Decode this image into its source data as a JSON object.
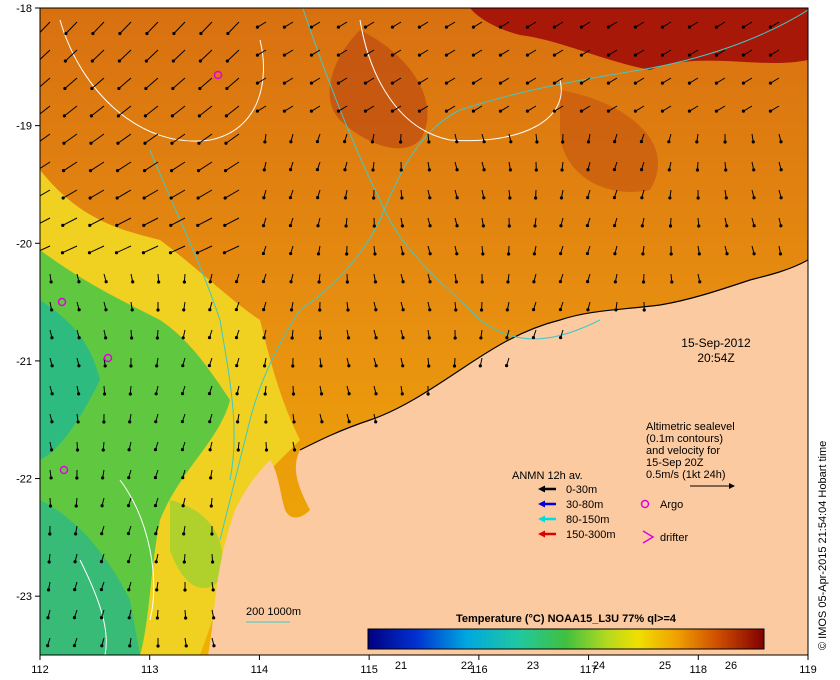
{
  "map": {
    "lon_ticks": [
      "112",
      "113",
      "114",
      "115",
      "116",
      "117",
      "118",
      "119"
    ],
    "lat_ticks": [
      "-18",
      "-19",
      "-20",
      "-21",
      "-22",
      "-23"
    ],
    "lon_range": [
      112,
      119
    ],
    "lat_range": [
      -23.5,
      -18
    ]
  },
  "datetime": {
    "date": "15-Sep-2012",
    "time": "20:54Z"
  },
  "altimetry_note": {
    "lines": [
      "Altimetric sealevel",
      "(0.1m contours)",
      "and velocity for",
      "15-Sep 20Z",
      "0.5m/s (1kt 24h)"
    ]
  },
  "anmn_legend": {
    "title": "ANMN 12h av.",
    "items": [
      {
        "label": "0-30m",
        "color": "#000000"
      },
      {
        "label": "30-80m",
        "color": "#0000dd"
      },
      {
        "label": "80-150m",
        "color": "#00dddd"
      },
      {
        "label": "150-300m",
        "color": "#dd0000"
      }
    ]
  },
  "markers": {
    "argo": "Argo",
    "drifter": "drifter",
    "argo_color": "#e000e0",
    "drifter_color": "#e000e0"
  },
  "bathymetry_legend": {
    "label": "200  1000m",
    "color": "#40c8c8"
  },
  "colorbar": {
    "title": "Temperature (°C) NOAA15_L3U 77% ql>=4",
    "ticks": [
      "21",
      "22",
      "23",
      "24",
      "25",
      "26"
    ],
    "range": [
      20.5,
      26.5
    ]
  },
  "credit": "© IMOS 05-Apr-2015 21:54:04 Hobart time",
  "colors": {
    "land": "#fbcaa0",
    "warm": "#d87010",
    "hot": "#a00000",
    "cool": "#30c060"
  }
}
